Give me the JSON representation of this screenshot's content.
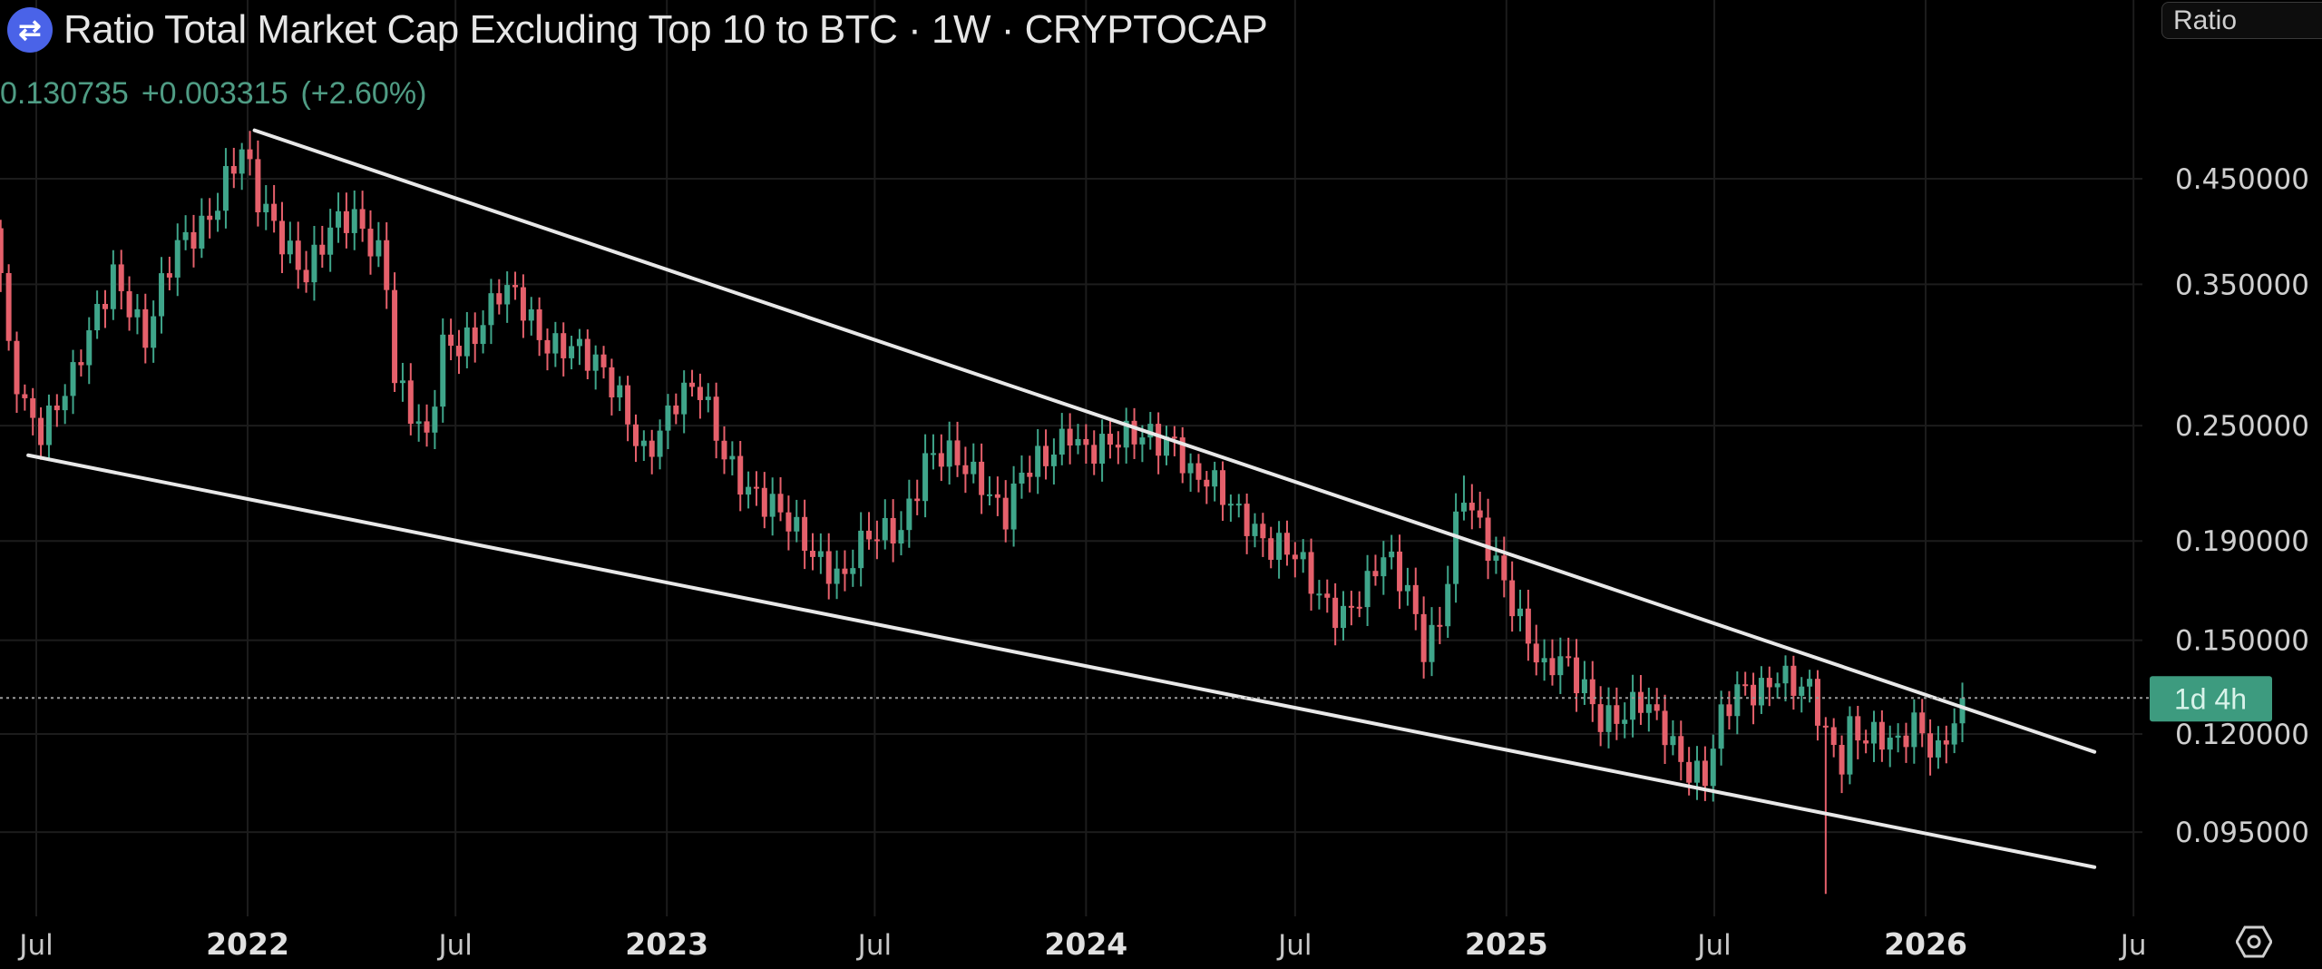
{
  "header": {
    "title": "Ratio Total Market Cap Excluding Top 10 to BTC · 1W · CRYPTOCAP",
    "logo_icon": "cryptocap-logo-icon",
    "last_value": "0.130735",
    "change": "+0.003315",
    "change_pct": "(+2.60%)"
  },
  "scale_button": "Ratio",
  "countdown_badge": "1d 4h",
  "settings_icon": "gear-icon",
  "colors": {
    "up": "#3fa58a",
    "down": "#e5606b",
    "badge": "#3d9b7f",
    "trendline": "#e8e8e8",
    "background": "#000000"
  },
  "chart_data": {
    "type": "candlestick",
    "interval": "1W",
    "yscale": "log",
    "ylim": [
      0.078,
      0.58
    ],
    "grid": true,
    "last_price": 0.130735,
    "y_ticks": [
      "0.450000",
      "0.350000",
      "0.250000",
      "0.190000",
      "0.150000",
      "0.120000",
      "0.095000"
    ],
    "x_ticks": [
      {
        "date": "2021-07-01",
        "label": "Jul"
      },
      {
        "date": "2022-01-01",
        "label": "2022"
      },
      {
        "date": "2022-07-01",
        "label": "Jul"
      },
      {
        "date": "2023-01-01",
        "label": "2023"
      },
      {
        "date": "2023-07-01",
        "label": "Jul"
      },
      {
        "date": "2024-01-01",
        "label": "2024"
      },
      {
        "date": "2024-07-01",
        "label": "Jul"
      },
      {
        "date": "2025-01-01",
        "label": "2025"
      },
      {
        "date": "2025-07-01",
        "label": "Jul"
      },
      {
        "date": "2026-01-01",
        "label": "2026"
      },
      {
        "date": "2026-07-01",
        "label": "Ju"
      }
    ],
    "closes": [
      [
        "2021-05-31",
        0.352
      ],
      [
        "2021-06-07",
        0.295
      ],
      [
        "2021-06-21",
        0.266
      ],
      [
        "2021-07-05",
        0.252
      ],
      [
        "2021-08-02",
        0.275
      ],
      [
        "2021-08-16",
        0.306
      ],
      [
        "2021-09-06",
        0.365
      ],
      [
        "2021-09-20",
        0.34
      ],
      [
        "2021-10-04",
        0.306
      ],
      [
        "2021-11-01",
        0.378
      ],
      [
        "2021-11-29",
        0.42
      ],
      [
        "2021-12-13",
        0.452
      ],
      [
        "2021-12-27",
        0.476
      ],
      [
        "2022-01-10",
        0.42
      ],
      [
        "2022-02-07",
        0.385
      ],
      [
        "2022-02-21",
        0.365
      ],
      [
        "2022-03-14",
        0.392
      ],
      [
        "2022-04-04",
        0.405
      ],
      [
        "2022-04-25",
        0.385
      ],
      [
        "2022-05-02",
        0.359
      ],
      [
        "2022-05-09",
        0.285
      ],
      [
        "2022-05-23",
        0.256
      ],
      [
        "2022-06-06",
        0.235
      ],
      [
        "2022-06-20",
        0.3
      ],
      [
        "2022-07-18",
        0.317
      ],
      [
        "2022-08-08",
        0.34
      ],
      [
        "2022-08-22",
        0.334
      ],
      [
        "2022-09-12",
        0.311
      ],
      [
        "2022-10-10",
        0.306
      ],
      [
        "2022-10-24",
        0.29
      ],
      [
        "2022-11-21",
        0.266
      ],
      [
        "2022-12-12",
        0.239
      ],
      [
        "2022-12-26",
        0.248
      ],
      [
        "2023-01-09",
        0.261
      ],
      [
        "2023-01-30",
        0.27
      ],
      [
        "2023-02-20",
        0.239
      ],
      [
        "2023-03-13",
        0.215
      ],
      [
        "2023-03-27",
        0.204
      ],
      [
        "2023-05-01",
        0.193
      ],
      [
        "2023-05-22",
        0.18
      ],
      [
        "2023-06-05",
        0.171
      ],
      [
        "2023-06-12",
        0.18
      ],
      [
        "2023-07-03",
        0.193
      ],
      [
        "2023-07-24",
        0.2
      ],
      [
        "2023-08-14",
        0.229
      ],
      [
        "2023-09-04",
        0.228
      ],
      [
        "2023-10-02",
        0.223
      ],
      [
        "2023-10-23",
        0.204
      ],
      [
        "2023-11-06",
        0.219
      ],
      [
        "2023-11-27",
        0.228
      ],
      [
        "2023-12-18",
        0.252
      ],
      [
        "2024-01-01",
        0.239
      ],
      [
        "2024-01-22",
        0.235
      ],
      [
        "2024-02-05",
        0.239
      ],
      [
        "2024-02-26",
        0.248
      ],
      [
        "2024-03-18",
        0.244
      ],
      [
        "2024-04-01",
        0.219
      ],
      [
        "2024-04-15",
        0.215
      ],
      [
        "2024-04-29",
        0.211
      ],
      [
        "2024-05-20",
        0.204
      ],
      [
        "2024-06-10",
        0.187
      ],
      [
        "2024-07-01",
        0.18
      ],
      [
        "2024-07-22",
        0.168
      ],
      [
        "2024-08-12",
        0.162
      ],
      [
        "2024-09-02",
        0.168
      ],
      [
        "2024-09-16",
        0.18
      ],
      [
        "2024-10-07",
        0.171
      ],
      [
        "2024-10-21",
        0.151
      ],
      [
        "2024-11-04",
        0.157
      ],
      [
        "2024-11-18",
        0.193
      ],
      [
        "2024-11-25",
        0.208
      ],
      [
        "2024-12-09",
        0.193
      ],
      [
        "2024-12-23",
        0.183
      ],
      [
        "2025-01-06",
        0.168
      ],
      [
        "2025-01-20",
        0.151
      ],
      [
        "2025-02-03",
        0.136
      ],
      [
        "2025-02-17",
        0.141
      ],
      [
        "2025-03-10",
        0.136
      ],
      [
        "2025-03-24",
        0.127
      ],
      [
        "2025-04-14",
        0.124
      ],
      [
        "2025-04-28",
        0.127
      ],
      [
        "2025-05-19",
        0.122
      ],
      [
        "2025-06-09",
        0.112
      ],
      [
        "2025-06-23",
        0.108
      ],
      [
        "2025-07-07",
        0.122
      ],
      [
        "2025-07-21",
        0.131
      ],
      [
        "2025-08-11",
        0.136
      ],
      [
        "2025-08-25",
        0.141
      ],
      [
        "2025-09-08",
        0.134
      ],
      [
        "2025-09-22",
        0.13
      ],
      [
        "2025-10-06",
        0.118
      ],
      [
        "2025-10-20",
        0.114
      ],
      [
        "2025-10-27",
        0.124
      ],
      [
        "2025-11-17",
        0.12
      ],
      [
        "2025-12-08",
        0.114
      ],
      [
        "2025-12-22",
        0.122
      ],
      [
        "2026-01-12",
        0.117
      ],
      [
        "2026-01-19",
        0.122
      ],
      [
        "2026-02-02",
        0.130735
      ]
    ],
    "notable_wicks": [
      {
        "date": "2025-10-06",
        "low": 0.082
      },
      {
        "date": "2024-11-25",
        "high": 0.222
      },
      {
        "date": "2021-12-27",
        "high": 0.49
      }
    ],
    "trendlines": [
      {
        "from": [
          "2022-01-07",
          0.505
        ],
        "to": [
          "2026-05-28",
          0.115
        ]
      },
      {
        "from": [
          "2021-06-24",
          0.233
        ],
        "to": [
          "2026-05-28",
          0.0874
        ]
      }
    ]
  }
}
